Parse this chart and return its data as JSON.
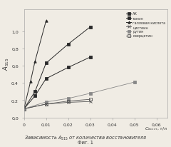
{
  "title": "Зависимость $A_{515}$ от количества восстановителя",
  "subtitle": "Фиг. 1",
  "ylabel": "$A_{515}$",
  "xlabel": "$C_{\\mathrm{восст}}$, г/л",
  "xlim": [
    0,
    0.065
  ],
  "ylim": [
    0.0,
    1.25
  ],
  "xticks": [
    0,
    0.01,
    0.02,
    0.03,
    0.04,
    0.05,
    0.06
  ],
  "yticks": [
    0.0,
    0.2,
    0.4,
    0.6,
    0.8,
    1.0
  ],
  "series": [
    {
      "name": "АК",
      "x": [
        0,
        0.005,
        0.01,
        0.02,
        0.03
      ],
      "y": [
        0.1,
        0.3,
        0.63,
        0.85,
        1.05
      ],
      "marker": "s",
      "ls": "-"
    },
    {
      "name": "танин",
      "x": [
        0,
        0.005,
        0.01,
        0.02,
        0.03
      ],
      "y": [
        0.1,
        0.25,
        0.45,
        0.58,
        0.7
      ],
      "marker": "s",
      "ls": "-"
    },
    {
      "name": "галловая кислота",
      "x": [
        0,
        0.003,
        0.005,
        0.01
      ],
      "y": [
        0.1,
        0.42,
        0.65,
        1.12
      ],
      "marker": "^",
      "ls": "-"
    },
    {
      "name": "цистеин",
      "x": [
        0,
        0.01,
        0.02,
        0.03
      ],
      "y": [
        0.1,
        0.155,
        0.175,
        0.185
      ],
      "marker": "x",
      "ls": "-"
    },
    {
      "name": "рутин",
      "x": [
        0,
        0.01,
        0.02,
        0.03,
        0.05
      ],
      "y": [
        0.1,
        0.18,
        0.22,
        0.28,
        0.41
      ],
      "marker": "s",
      "ls": "-"
    },
    {
      "name": "кверцетин",
      "x": [
        0,
        0.01,
        0.02,
        0.03
      ],
      "y": [
        0.1,
        0.155,
        0.19,
        0.21
      ],
      "marker": "s",
      "ls": "-"
    }
  ],
  "background_color": "#f0ece4",
  "line_color": "#444444",
  "text_color": "#333333"
}
